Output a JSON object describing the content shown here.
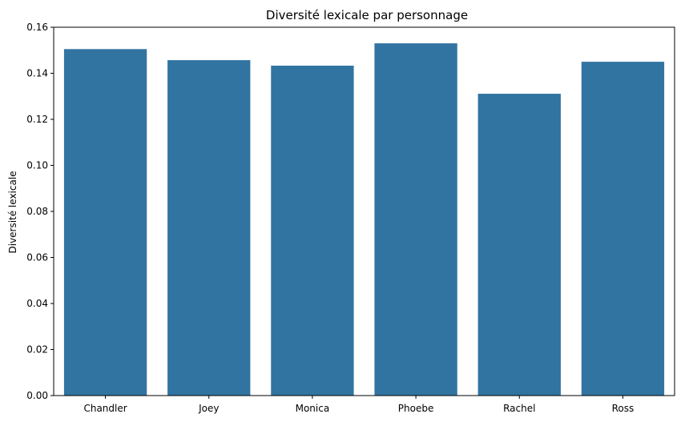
{
  "chart_data": {
    "type": "bar",
    "title": "Diversité lexicale par personnage",
    "xlabel": "",
    "ylabel": "Diversité lexicale",
    "categories": [
      "Chandler",
      "Joey",
      "Monica",
      "Phoebe",
      "Rachel",
      "Ross"
    ],
    "values": [
      0.1505,
      0.1457,
      0.1433,
      0.153,
      0.1311,
      0.145
    ],
    "ylim": [
      0,
      0.16
    ],
    "yticks": [
      "0.00",
      "0.02",
      "0.04",
      "0.06",
      "0.08",
      "0.10",
      "0.12",
      "0.14",
      "0.16"
    ],
    "grid": false,
    "legend": "none",
    "bar_color": "#3274a1"
  }
}
